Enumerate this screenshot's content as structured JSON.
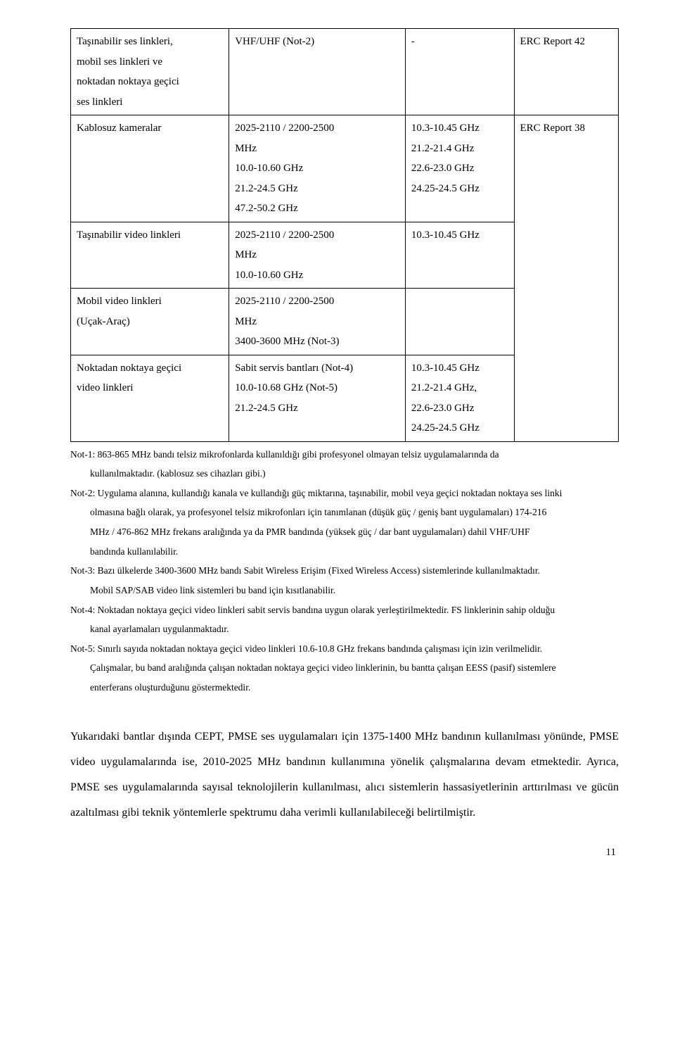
{
  "table": {
    "r1": {
      "c1a": "Taşınabilir ses linkleri,",
      "c1b": "mobil ses linkleri ve",
      "c1c": "noktadan noktaya geçici",
      "c1d": "ses linkleri",
      "c2": "VHF/UHF (Not-2)",
      "c3": "-",
      "c4": "ERC Report 42"
    },
    "r2": {
      "c1": "Kablosuz kameralar",
      "c2a": "2025-2110 / 2200-2500",
      "c2b": "MHz",
      "c2c": "10.0-10.60 GHz",
      "c2d": "21.2-24.5 GHz",
      "c2e": "47.2-50.2 GHz",
      "c3a": "10.3-10.45 GHz",
      "c3b": "21.2-21.4 GHz",
      "c3c": "22.6-23.0 GHz",
      "c3d": "24.25-24.5 GHz",
      "c4": "ERC Report 38"
    },
    "r3": {
      "c1": "Taşınabilir video linkleri",
      "c2a": "2025-2110 / 2200-2500",
      "c2b": "MHz",
      "c2c": "10.0-10.60 GHz",
      "c3": "10.3-10.45 GHz"
    },
    "r4": {
      "c1a": "Mobil video linkleri",
      "c1b": "(Uçak-Araç)",
      "c2a": "2025-2110 / 2200-2500",
      "c2b": "MHz",
      "c2c": "3400-3600 MHz (Not-3)"
    },
    "r5": {
      "c1a": "Noktadan noktaya geçici",
      "c1b": "video linkleri",
      "c2a": "Sabit servis bantları (Not-4)",
      "c2b": "10.0-10.68 GHz (Not-5)",
      "c2c": "21.2-24.5 GHz",
      "c3a": "10.3-10.45 GHz",
      "c3b": "21.2-21.4 GHz,",
      "c3c": "22.6-23.0 GHz",
      "c3d": "24.25-24.5 GHz"
    }
  },
  "notes": {
    "n1a": "Not-1: 863-865 MHz bandı telsiz mikrofonlarda kullanıldığı gibi profesyonel olmayan telsiz uygulamalarında da",
    "n1b": "kullanılmaktadır. (kablosuz ses cihazları gibi.)",
    "n2a": "Not-2: Uygulama alanına, kullandığı kanala ve kullandığı güç miktarına, taşınabilir, mobil veya geçici noktadan noktaya ses linki",
    "n2b": "olmasına bağlı olarak, ya profesyonel telsiz mikrofonları için tanımlanan (düşük güç / geniş bant uygulamaları) 174-216",
    "n2c": "MHz / 476-862 MHz  frekans aralığında ya da PMR bandında (yüksek güç / dar bant uygulamaları)  dahil VHF/UHF",
    "n2d": "bandında kullanılabilir.",
    "n3a": "Not-3: Bazı ülkelerde 3400-3600 MHz bandı Sabit Wireless Erişim  (Fixed Wireless Access) sistemlerinde kullanılmaktadır.",
    "n3b": "Mobil SAP/SAB video link sistemleri bu band için kısıtlanabilir.",
    "n4a": "Not-4: Noktadan noktaya geçici video linkleri sabit servis bandına uygun olarak yerleştirilmektedir. FS linklerinin sahip olduğu",
    "n4b": "kanal ayarlamaları uygulanmaktadır.",
    "n5a": "Not-5: Sınırlı sayıda noktadan noktaya geçici video linkleri 10.6-10.8 GHz frekans bandında çalışması için izin verilmelidir.",
    "n5b": "Çalışmalar, bu band aralığında çalışan noktadan noktaya geçici video linklerinin, bu bantta çalışan EESS (pasif) sistemlere",
    "n5c": "enterferans oluşturduğunu göstermektedir."
  },
  "body": "Yukarıdaki bantlar dışında CEPT, PMSE ses uygulamaları için 1375-1400 MHz bandının kullanılması yönünde, PMSE video uygulamalarında ise, 2010-2025 MHz bandının kullanımına yönelik çalışmalarına devam etmektedir.  Ayrıca, PMSE ses uygulamalarında sayısal teknolojilerin kullanılması, alıcı sistemlerin hassasiyetlerinin arttırılması ve gücün azaltılması gibi teknik yöntemlerle spektrumu daha verimli kullanılabileceği belirtilmiştir.",
  "pagenum": "11"
}
